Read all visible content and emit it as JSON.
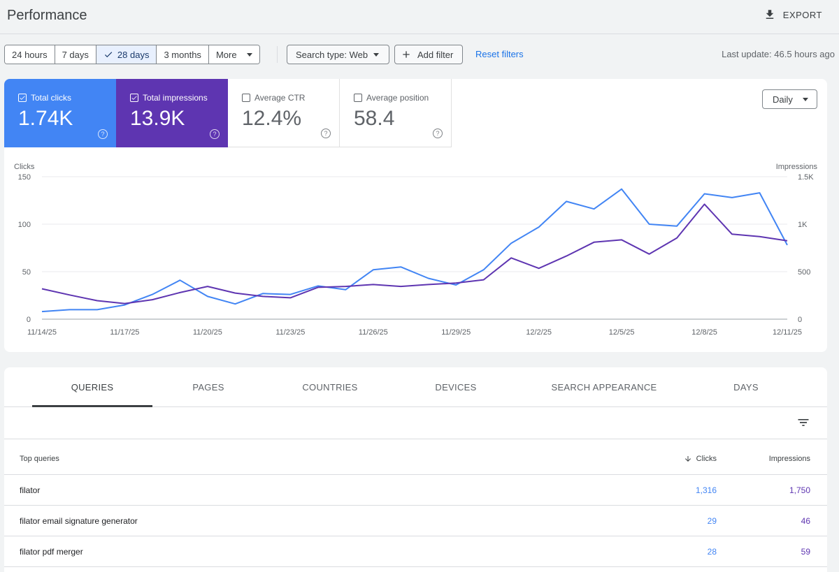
{
  "header": {
    "title": "Performance",
    "export_label": "EXPORT"
  },
  "toolbar": {
    "ranges": [
      {
        "label": "24 hours",
        "selected": false
      },
      {
        "label": "7 days",
        "selected": false
      },
      {
        "label": "28 days",
        "selected": true
      },
      {
        "label": "3 months",
        "selected": false
      },
      {
        "label": "More",
        "selected": false
      }
    ],
    "search_type": "Search type: Web",
    "add_filter": "Add filter",
    "reset_filters": "Reset filters",
    "last_update": "Last update: 46.5 hours ago"
  },
  "metrics": {
    "clicks": {
      "label": "Total clicks",
      "value": "1.74K",
      "checked": true,
      "color": "#4285f4"
    },
    "impressions": {
      "label": "Total impressions",
      "value": "13.9K",
      "checked": true,
      "color": "#5e35b1"
    },
    "ctr": {
      "label": "Average CTR",
      "value": "12.4%",
      "checked": false
    },
    "position": {
      "label": "Average position",
      "value": "58.4",
      "checked": false
    }
  },
  "granularity": "Daily",
  "chart_data": {
    "type": "line",
    "left_axis_label": "Clicks",
    "right_axis_label": "Impressions",
    "left_ticks": [
      "150",
      "100",
      "50",
      "0"
    ],
    "right_ticks": [
      "1.5K",
      "1K",
      "500",
      "0"
    ],
    "ylim_left": [
      0,
      150
    ],
    "ylim_right": [
      0,
      1500
    ],
    "x_tick_labels": [
      "11/14/25",
      "11/17/25",
      "11/20/25",
      "11/23/25",
      "11/26/25",
      "11/29/25",
      "12/2/25",
      "12/5/25",
      "12/8/25",
      "12/11/25"
    ],
    "x": [
      "11/14/25",
      "11/15/25",
      "11/16/25",
      "11/17/25",
      "11/18/25",
      "11/19/25",
      "11/20/25",
      "11/21/25",
      "11/22/25",
      "11/23/25",
      "11/24/25",
      "11/25/25",
      "11/26/25",
      "11/27/25",
      "11/28/25",
      "11/29/25",
      "11/30/25",
      "12/1/25",
      "12/2/25",
      "12/3/25",
      "12/4/25",
      "12/5/25",
      "12/6/25",
      "12/7/25",
      "12/8/25",
      "12/9/25",
      "12/10/25",
      "12/11/25"
    ],
    "series": [
      {
        "name": "Clicks",
        "axis": "left",
        "color": "#4285f4",
        "values": [
          8,
          10,
          10,
          15,
          26,
          41,
          24,
          16,
          27,
          26,
          35,
          31,
          52,
          55,
          43,
          36,
          52,
          80,
          97,
          124,
          116,
          137,
          100,
          98,
          132,
          128,
          133,
          78
        ]
      },
      {
        "name": "Impressions",
        "axis": "right",
        "color": "#5e35b1",
        "values": [
          320,
          255,
          195,
          165,
          205,
          280,
          345,
          275,
          240,
          225,
          335,
          345,
          365,
          345,
          365,
          380,
          415,
          645,
          535,
          665,
          810,
          835,
          685,
          855,
          1210,
          895,
          870,
          825
        ]
      }
    ]
  },
  "tabs": [
    "QUERIES",
    "PAGES",
    "COUNTRIES",
    "DEVICES",
    "SEARCH APPEARANCE",
    "DAYS"
  ],
  "table": {
    "headers": {
      "query": "Top queries",
      "clicks": "Clicks",
      "impressions": "Impressions"
    },
    "rows": [
      {
        "query": "filator",
        "clicks": "1,316",
        "impressions": "1,750"
      },
      {
        "query": "filator email signature generator",
        "clicks": "29",
        "impressions": "46"
      },
      {
        "query": "filator pdf merger",
        "clicks": "28",
        "impressions": "59"
      }
    ]
  }
}
